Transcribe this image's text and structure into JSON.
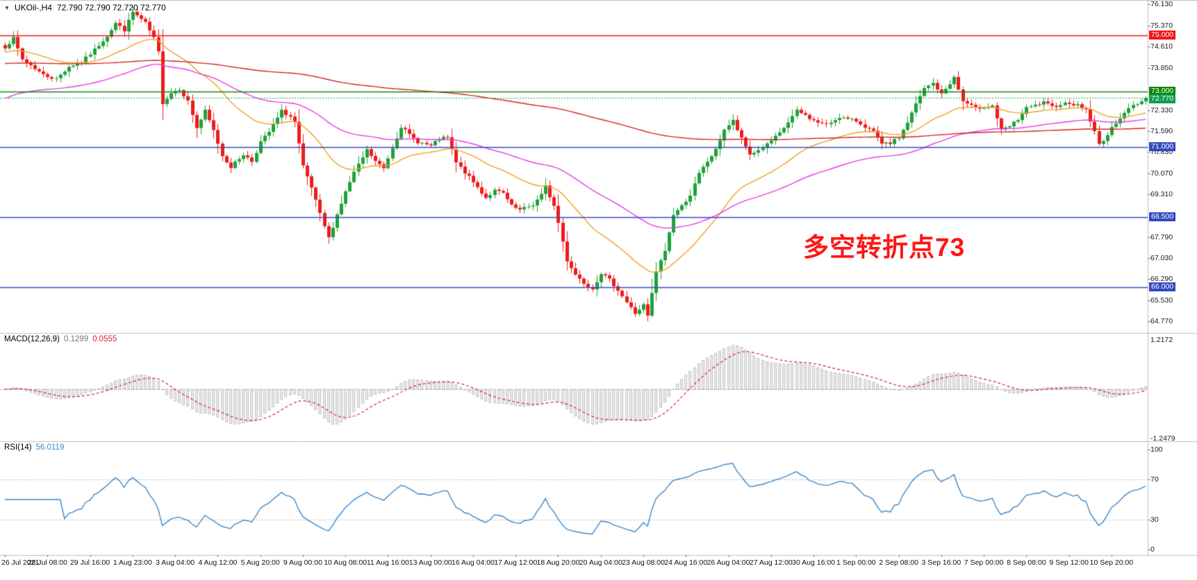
{
  "header": {
    "dropdown_icon": "▼",
    "title": "UKOil-,H4",
    "ohlc": "72.790 72.790 72.720 72.770"
  },
  "annotation": {
    "text": "多空转折点73",
    "color": "#ff1515"
  },
  "indicators": {
    "macd": {
      "name": "MACD(12,26,9)",
      "main_value": "0.1299",
      "signal_value": "0.0555"
    },
    "rsi": {
      "name": "RSI(14)",
      "value": "56.0119"
    }
  },
  "chart_data": [
    {
      "type": "candlestick",
      "title": "UKOil-,H4",
      "ohlc_display": "72.790 72.790 72.720 72.770",
      "bars": 269,
      "price_range": [
        64.55,
        76.13
      ],
      "candle_up": "#1fa23a",
      "candle_down": "#ee1c1c",
      "axis_ticks": [
        "76.130",
        "75.370",
        "74.610",
        "73.850",
        "72.330",
        "71.590",
        "70.830",
        "70.070",
        "69.310",
        "67.790",
        "67.030",
        "66.290",
        "65.530",
        "64.770"
      ],
      "levels": [
        {
          "price": 75.0,
          "label": "75.000",
          "color": "#ee1717"
        },
        {
          "price": 73.0,
          "label": "73.000",
          "color": "#0c860c"
        },
        {
          "price": 71.0,
          "label": "71.000",
          "color": "#3448c0"
        },
        {
          "price": 68.5,
          "label": "68.500",
          "color": "#3448c0"
        },
        {
          "price": 66.0,
          "label": "66.000",
          "color": "#3448c0"
        }
      ],
      "current_price": {
        "value": 72.77,
        "label": "72.770",
        "color": "#0f9d4f"
      },
      "moving_averages": [
        {
          "name": "ma-fast",
          "period": 28,
          "color": "#f0a021",
          "init": 74.4
        },
        {
          "name": "ma-mid",
          "period": 70,
          "color": "#e53ae5",
          "init": 72.7
        },
        {
          "name": "ma-slow",
          "period": 300,
          "color": "#d42222",
          "init": 74.0
        }
      ],
      "close_anchors": [
        [
          0,
          74.6
        ],
        [
          2,
          74.9
        ],
        [
          4,
          74.15
        ],
        [
          6,
          73.95
        ],
        [
          9,
          73.6
        ],
        [
          12,
          73.45
        ],
        [
          15,
          73.9
        ],
        [
          18,
          74.05
        ],
        [
          21,
          74.5
        ],
        [
          24,
          75.0
        ],
        [
          26,
          75.45
        ],
        [
          28,
          75.2
        ],
        [
          30,
          75.85
        ],
        [
          33,
          75.45
        ],
        [
          35,
          74.9
        ],
        [
          36,
          74.4
        ],
        [
          37,
          72.6
        ],
        [
          39,
          72.95
        ],
        [
          41,
          73.1
        ],
        [
          43,
          72.65
        ],
        [
          45,
          71.7
        ],
        [
          47,
          72.3
        ],
        [
          49,
          71.6
        ],
        [
          51,
          70.7
        ],
        [
          53,
          70.3
        ],
        [
          56,
          70.75
        ],
        [
          58,
          70.5
        ],
        [
          60,
          71.2
        ],
        [
          62,
          71.55
        ],
        [
          65,
          72.3
        ],
        [
          67,
          72.1
        ],
        [
          68,
          71.9
        ],
        [
          70,
          70.3
        ],
        [
          72,
          69.55
        ],
        [
          74,
          68.6
        ],
        [
          76,
          67.75
        ],
        [
          78,
          68.6
        ],
        [
          80,
          69.4
        ],
        [
          82,
          70.1
        ],
        [
          85,
          70.9
        ],
        [
          87,
          70.5
        ],
        [
          89,
          70.25
        ],
        [
          91,
          71.0
        ],
        [
          93,
          71.75
        ],
        [
          95,
          71.45
        ],
        [
          97,
          71.2
        ],
        [
          100,
          71.05
        ],
        [
          102,
          71.3
        ],
        [
          104,
          71.35
        ],
        [
          106,
          70.45
        ],
        [
          108,
          70.1
        ],
        [
          110,
          69.75
        ],
        [
          113,
          69.2
        ],
        [
          115,
          69.45
        ],
        [
          117,
          69.35
        ],
        [
          119,
          68.9
        ],
        [
          121,
          68.75
        ],
        [
          124,
          68.95
        ],
        [
          126,
          69.3
        ],
        [
          127,
          69.6
        ],
        [
          129,
          68.9
        ],
        [
          130,
          68.3
        ],
        [
          132,
          66.95
        ],
        [
          134,
          66.45
        ],
        [
          136,
          66.15
        ],
        [
          138,
          65.95
        ],
        [
          140,
          66.5
        ],
        [
          142,
          66.25
        ],
        [
          144,
          65.9
        ],
        [
          146,
          65.45
        ],
        [
          148,
          65.05
        ],
        [
          150,
          65.35
        ],
        [
          151,
          64.95
        ],
        [
          153,
          66.55
        ],
        [
          155,
          67.3
        ],
        [
          157,
          68.6
        ],
        [
          159,
          68.9
        ],
        [
          161,
          69.3
        ],
        [
          163,
          70.05
        ],
        [
          165,
          70.5
        ],
        [
          167,
          70.9
        ],
        [
          169,
          71.65
        ],
        [
          171,
          71.95
        ],
        [
          173,
          71.3
        ],
        [
          175,
          70.75
        ],
        [
          177,
          70.9
        ],
        [
          179,
          71.1
        ],
        [
          182,
          71.5
        ],
        [
          184,
          71.9
        ],
        [
          186,
          72.3
        ],
        [
          188,
          72.15
        ],
        [
          190,
          71.95
        ],
        [
          193,
          71.8
        ],
        [
          196,
          72.1
        ],
        [
          198,
          72.0
        ],
        [
          200,
          71.95
        ],
        [
          202,
          71.75
        ],
        [
          204,
          71.55
        ],
        [
          206,
          71.1
        ],
        [
          208,
          71.15
        ],
        [
          210,
          71.35
        ],
        [
          212,
          71.9
        ],
        [
          214,
          72.55
        ],
        [
          216,
          73.1
        ],
        [
          218,
          73.3
        ],
        [
          220,
          72.9
        ],
        [
          222,
          73.3
        ],
        [
          223,
          73.5
        ],
        [
          225,
          72.65
        ],
        [
          228,
          72.4
        ],
        [
          230,
          72.45
        ],
        [
          232,
          72.5
        ],
        [
          234,
          71.6
        ],
        [
          236,
          71.75
        ],
        [
          238,
          72.0
        ],
        [
          240,
          72.4
        ],
        [
          242,
          72.5
        ],
        [
          244,
          72.6
        ],
        [
          246,
          72.45
        ],
        [
          248,
          72.55
        ],
        [
          250,
          72.6
        ],
        [
          252,
          72.5
        ],
        [
          254,
          72.35
        ],
        [
          256,
          71.55
        ],
        [
          257,
          71.1
        ],
        [
          259,
          71.45
        ],
        [
          261,
          71.9
        ],
        [
          263,
          72.25
        ],
        [
          265,
          72.5
        ],
        [
          267,
          72.65
        ],
        [
          268,
          72.77
        ]
      ],
      "x_labels": [
        "26 Jul 2021",
        "28 Jul 08:00",
        "29 Jul 16:00",
        "1 Aug 23:00",
        "3 Aug 04:00",
        "4 Aug 12:00",
        "5 Aug 20:00",
        "9 Aug 00:00",
        "10 Aug 08:00",
        "11 Aug 16:00",
        "13 Aug 00:00",
        "16 Aug 04:00",
        "17 Aug 12:00",
        "18 Aug 20:00",
        "20 Aug 04:00",
        "23 Aug 08:00",
        "24 Aug 16:00",
        "26 Aug 04:00",
        "27 Aug 12:00",
        "30 Aug 16:00",
        "1 Sep 00:00",
        "2 Sep 08:00",
        "3 Sep 16:00",
        "7 Sep 00:00",
        "8 Sep 08:00",
        "9 Sep 12:00",
        "10 Sep 20:00"
      ]
    },
    {
      "type": "macd-histogram",
      "label": "MACD(12,26,9)",
      "main_value": "0.1299",
      "signal_value": "0.0555",
      "params": [
        12,
        26,
        9
      ],
      "axis_ticks": [
        "1.2172",
        "-1.2479"
      ],
      "histogram_fill": "#ececec",
      "histogram_stroke": "#ababab",
      "signal_color": "#d42222"
    },
    {
      "type": "line",
      "label": "RSI(14)",
      "value": "56.0119",
      "period": 14,
      "range": [
        0,
        100
      ],
      "levels": [
        70,
        30
      ],
      "axis_ticks": [
        "100",
        "70",
        "30",
        "0"
      ],
      "line_color": "#3a87c8"
    }
  ]
}
